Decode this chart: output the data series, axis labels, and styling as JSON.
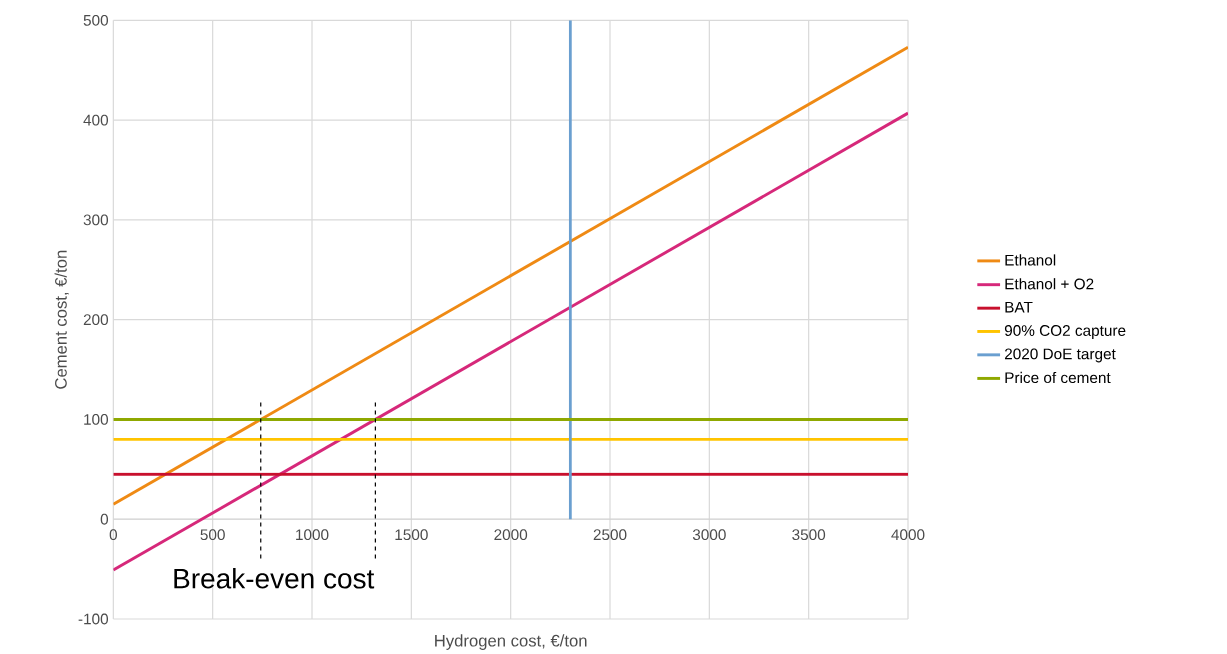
{
  "chart_data": {
    "type": "line",
    "xlabel": "Hydrogen cost, €/ton",
    "ylabel": "Cement cost, €/ton",
    "xlim": [
      0,
      4000
    ],
    "ylim": [
      -100,
      500
    ],
    "xticks": [
      0,
      500,
      1000,
      1500,
      2000,
      2500,
      3000,
      3500,
      4000
    ],
    "yticks": [
      -100,
      0,
      100,
      200,
      300,
      400,
      500
    ],
    "grid": true,
    "legend": "right",
    "annotations": [
      "Break-even cost"
    ],
    "series": [
      {
        "name": "Ethanol",
        "color": "#ef8a14",
        "x": [
          0,
          4000
        ],
        "values": [
          15,
          473
        ]
      },
      {
        "name": "Ethanol + O2",
        "color": "#d6287a",
        "x": [
          0,
          4000
        ],
        "values": [
          -51,
          407
        ]
      },
      {
        "name": "BAT",
        "color": "#c8102e",
        "x": [
          0,
          4000
        ],
        "values": [
          45,
          45
        ]
      },
      {
        "name": "90% CO2 capture",
        "color": "#ffc400",
        "x": [
          0,
          4000
        ],
        "values": [
          80,
          80
        ]
      },
      {
        "name": "2020 DoE target",
        "color": "#6a9fd0",
        "x": [
          2300,
          2300
        ],
        "values": [
          0,
          500
        ]
      },
      {
        "name": "Price of cement",
        "color": "#8fa800",
        "x": [
          0,
          4000
        ],
        "values": [
          100,
          100
        ]
      },
      {
        "color": "#000000",
        "line_style": "dashed",
        "x": [
          742,
          742
        ],
        "values": [
          117,
          -40
        ]
      },
      {
        "color": "#000000",
        "line_style": "dashed",
        "x": [
          1319,
          1319
        ],
        "values": [
          117,
          -40
        ]
      }
    ]
  }
}
